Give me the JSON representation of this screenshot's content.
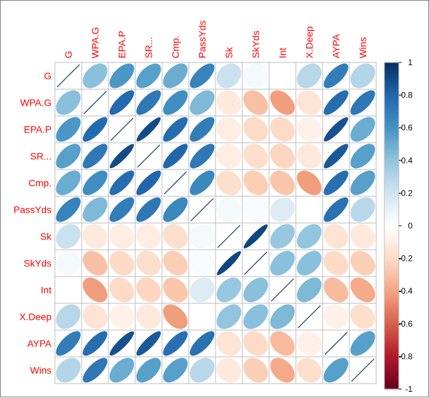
{
  "chart_data": {
    "type": "heatmap",
    "title": "",
    "variables": [
      "G",
      "WPA.G",
      "EPA.P",
      "SR...",
      "Cmp.",
      "PassYds",
      "Sk",
      "SkYds",
      "Int",
      "X.Deep",
      "AYPA",
      "Wins"
    ],
    "matrix": [
      [
        1.0,
        0.42,
        0.58,
        0.55,
        0.5,
        0.67,
        0.22,
        0.05,
        0.0,
        0.28,
        0.7,
        0.3
      ],
      [
        0.42,
        1.0,
        0.78,
        0.72,
        0.62,
        0.45,
        -0.12,
        -0.3,
        -0.42,
        -0.15,
        0.77,
        0.72
      ],
      [
        0.58,
        0.78,
        1.0,
        0.9,
        0.77,
        0.7,
        -0.1,
        -0.2,
        -0.2,
        -0.08,
        0.88,
        0.5
      ],
      [
        0.55,
        0.72,
        0.9,
        1.0,
        0.8,
        0.72,
        -0.1,
        -0.18,
        -0.22,
        -0.12,
        0.85,
        0.55
      ],
      [
        0.5,
        0.62,
        0.77,
        0.8,
        1.0,
        0.65,
        -0.18,
        -0.25,
        -0.28,
        -0.42,
        0.76,
        0.55
      ],
      [
        0.67,
        0.45,
        0.7,
        0.72,
        0.65,
        1.0,
        0.05,
        0.03,
        0.15,
        0.0,
        0.75,
        0.28
      ],
      [
        0.22,
        -0.12,
        -0.1,
        -0.1,
        -0.18,
        0.05,
        1.0,
        0.92,
        0.38,
        0.4,
        -0.15,
        -0.12
      ],
      [
        0.05,
        -0.3,
        -0.2,
        -0.18,
        -0.25,
        0.03,
        0.92,
        1.0,
        0.42,
        0.42,
        -0.2,
        -0.25
      ],
      [
        0.0,
        -0.42,
        -0.2,
        -0.22,
        -0.28,
        0.15,
        0.38,
        0.42,
        1.0,
        0.45,
        -0.32,
        -0.38
      ],
      [
        0.28,
        -0.15,
        -0.08,
        -0.12,
        -0.42,
        0.0,
        0.4,
        0.42,
        0.45,
        1.0,
        -0.08,
        -0.18
      ],
      [
        0.7,
        0.77,
        0.88,
        0.85,
        0.76,
        0.75,
        -0.15,
        -0.2,
        -0.32,
        -0.08,
        1.0,
        0.55
      ],
      [
        0.3,
        0.72,
        0.5,
        0.55,
        0.55,
        0.28,
        -0.12,
        -0.25,
        -0.38,
        -0.18,
        0.55,
        1.0
      ]
    ],
    "colorbar": {
      "min": -1,
      "max": 1,
      "ticks": [
        -1,
        -0.8,
        -0.6,
        -0.4,
        -0.2,
        0,
        0.2,
        0.4,
        0.6,
        0.8,
        1
      ],
      "tick_labels": [
        "-1",
        "-0.8",
        "-0.6",
        "-0.4",
        "-0.2",
        "0",
        "0.2",
        "0.4",
        "0.6",
        "0.8",
        "1"
      ],
      "colors": [
        "#67001F",
        "#B2182B",
        "#D6604D",
        "#F4A582",
        "#FDDBC7",
        "#FFFFFF",
        "#D1E5F0",
        "#92C5DE",
        "#4393C3",
        "#2166AC",
        "#053061"
      ]
    },
    "label_color": "#FF0000",
    "grid_color": "#BEBEBE",
    "diagonal_color": "#053061"
  }
}
